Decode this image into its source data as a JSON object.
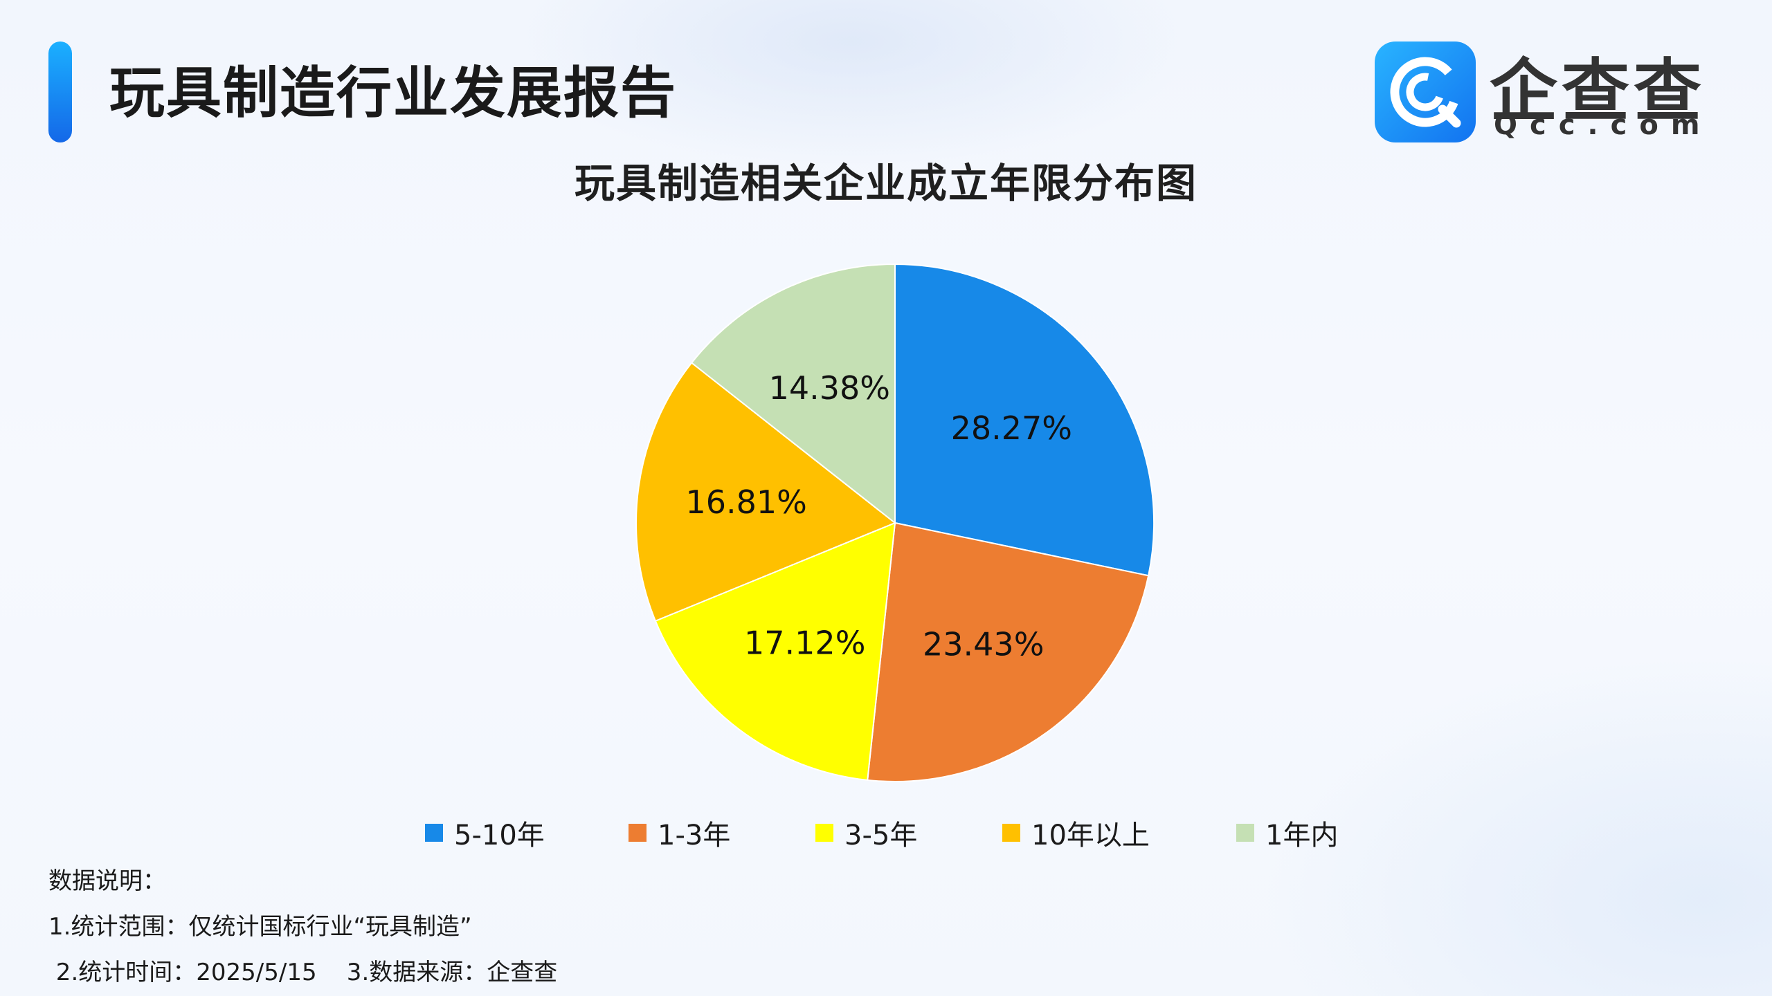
{
  "header": {
    "title": "玩具制造行业发展报告"
  },
  "brand": {
    "name": "企查查",
    "domain": "Qcc.com",
    "icon": "qcc-logo-icon",
    "color": "#1a86f0"
  },
  "chart_data": {
    "type": "pie",
    "title": "玩具制造相关企业成立年限分布图",
    "start_angle": "12 o'clock",
    "direction": "clockwise",
    "legend_position": "bottom",
    "slices": [
      {
        "label": "5-10年",
        "value": 28.27,
        "value_label": "28.27%",
        "color": "#1789e8"
      },
      {
        "label": "1-3年",
        "value": 23.43,
        "value_label": "23.43%",
        "color": "#ed7d31"
      },
      {
        "label": "3-5年",
        "value": 17.12,
        "value_label": "17.12%",
        "color": "#ffff00"
      },
      {
        "label": "10年以上",
        "value": 16.81,
        "value_label": "16.81%",
        "color": "#ffc000"
      },
      {
        "label": "1年内",
        "value": 14.38,
        "value_label": "14.38%",
        "color": "#c5e0b4"
      }
    ]
  },
  "notes": {
    "heading": "数据说明：",
    "line1": "1.统计范围：仅统计国标行业“玩具制造”",
    "line2": " 2.统计时间：2025/5/15    3.数据来源：企查查"
  }
}
